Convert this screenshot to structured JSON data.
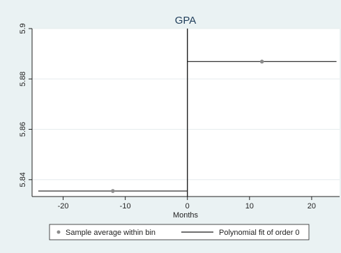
{
  "chart_data": {
    "type": "scatter",
    "title": "GPA",
    "xlabel": "Months",
    "ylabel": "",
    "xlim": [
      -25,
      24.5
    ],
    "ylim": [
      5.8333,
      5.9
    ],
    "x_ticks": [
      -20,
      -10,
      0,
      10,
      20
    ],
    "y_ticks": [
      5.84,
      5.86,
      5.88,
      5.9
    ],
    "x_tick_labels": [
      "-20",
      "-10",
      "0",
      "10",
      "20"
    ],
    "y_tick_labels": [
      "5.84",
      "5.86",
      "5.88",
      "5.9"
    ],
    "cutoff": 0,
    "grid": "horizontal",
    "legend_placement": "bottom",
    "series": [
      {
        "name": "Sample average within bin",
        "kind": "points",
        "color": "#8c8c8c",
        "points": [
          {
            "x": -12,
            "y": 5.8355
          },
          {
            "x": 12,
            "y": 5.8869
          }
        ]
      },
      {
        "name": "Polynomial fit of order 0",
        "kind": "segments",
        "color": "#1a1a1a",
        "segments": [
          {
            "x0": -24,
            "x1": 0,
            "y": 5.8355
          },
          {
            "x0": 0,
            "x1": 24,
            "y": 5.8869
          }
        ]
      }
    ],
    "colors": {
      "outer_background": "#eaf2f3",
      "plot_background": "#ffffff",
      "gridline": "#e6ecee",
      "title": "#1f3d5a"
    }
  }
}
